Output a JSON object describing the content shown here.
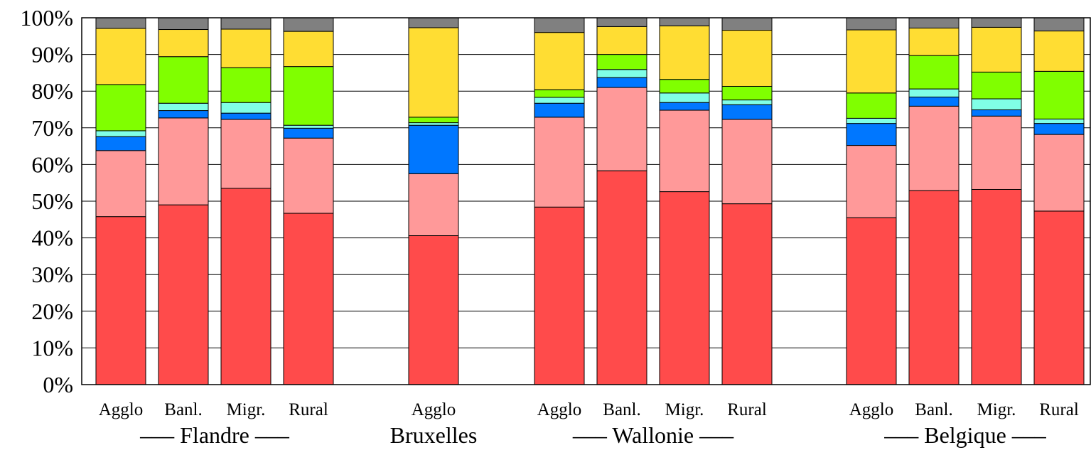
{
  "chart_data": {
    "type": "bar",
    "stacked": true,
    "y_ticks": [
      "0%",
      "10%",
      "20%",
      "30%",
      "40%",
      "50%",
      "60%",
      "70%",
      "80%",
      "90%",
      "100%"
    ],
    "ylim": [
      0,
      100
    ],
    "grid": true,
    "legend": "none",
    "colors": [
      "#ff4b4b",
      "#ff9999",
      "#0077ff",
      "#80ffe6",
      "#80ff00",
      "#ffdd33",
      "#808080"
    ],
    "groups": [
      {
        "label": "––– Flandre –––",
        "categories": [
          "Agglo",
          "Banl.",
          "Migr.",
          "Rural"
        ]
      },
      {
        "label": "Bruxelles",
        "categories": [
          "Agglo"
        ]
      },
      {
        "label": "––– Wallonie –––",
        "categories": [
          "Agglo",
          "Banl.",
          "Migr.",
          "Rural"
        ]
      },
      {
        "label": "––– Belgique –––",
        "categories": [
          "Agglo",
          "Banl.",
          "Migr.",
          "Rural"
        ]
      }
    ],
    "bars": [
      [
        45.8,
        18.0,
        3.8,
        1.6,
        12.6,
        15.3,
        2.9
      ],
      [
        49.0,
        23.7,
        2.0,
        2.0,
        12.7,
        7.4,
        3.2
      ],
      [
        53.5,
        18.8,
        1.7,
        2.9,
        9.5,
        10.5,
        3.1
      ],
      [
        46.7,
        20.5,
        2.7,
        0.8,
        16.0,
        9.6,
        3.7
      ],
      [
        40.6,
        16.9,
        13.2,
        0.7,
        1.5,
        24.4,
        2.7
      ],
      [
        48.4,
        24.5,
        3.8,
        1.6,
        2.1,
        15.6,
        4.0
      ],
      [
        58.3,
        22.7,
        2.7,
        2.2,
        4.1,
        7.6,
        2.4
      ],
      [
        52.6,
        22.2,
        2.1,
        2.6,
        3.7,
        14.6,
        2.2
      ],
      [
        49.3,
        23.0,
        4.0,
        1.3,
        3.7,
        15.3,
        3.4
      ],
      [
        45.5,
        19.7,
        6.0,
        1.4,
        6.9,
        17.2,
        3.3
      ],
      [
        52.9,
        23.0,
        2.5,
        2.2,
        9.1,
        7.5,
        2.8
      ],
      [
        53.2,
        20.0,
        1.7,
        3.0,
        7.3,
        12.2,
        2.6
      ],
      [
        47.3,
        20.9,
        3.0,
        1.2,
        13.0,
        11.0,
        3.6
      ]
    ]
  }
}
